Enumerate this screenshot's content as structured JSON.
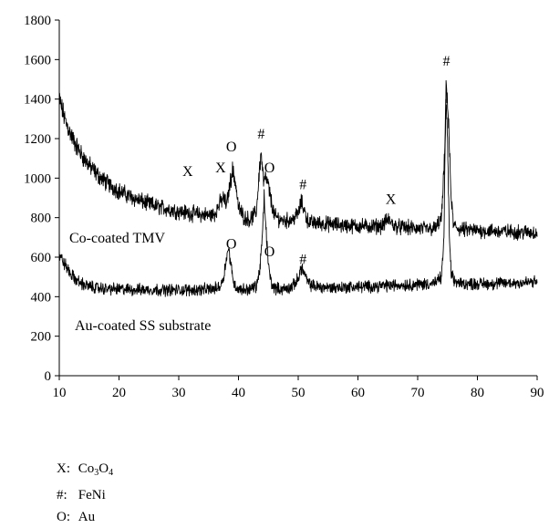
{
  "chart_data": {
    "type": "line",
    "xlim": [
      10,
      90
    ],
    "ylim": [
      0,
      1800
    ],
    "x_ticks": [
      10,
      20,
      30,
      40,
      50,
      60,
      70,
      80,
      90
    ],
    "y_ticks": [
      0,
      200,
      400,
      600,
      800,
      1000,
      1200,
      1400,
      1600,
      1800
    ],
    "grid": false,
    "series": [
      {
        "name": "Co-coated TMV",
        "color": "#000000",
        "x": [
          10,
          11,
          12,
          13,
          14,
          15,
          16,
          17,
          18,
          19,
          20,
          22,
          24,
          26,
          28,
          30,
          32,
          34,
          35,
          36,
          37,
          37.5,
          38,
          38.5,
          39,
          39.5,
          40,
          41,
          42,
          43,
          43.5,
          43.8,
          44.2,
          44.6,
          45,
          45.5,
          46,
          47,
          48,
          49,
          50,
          50.5,
          51,
          51.5,
          52,
          54,
          56,
          58,
          60,
          62,
          64,
          65,
          65.5,
          66,
          67,
          68,
          70,
          72,
          73,
          74,
          74.5,
          74.8,
          75.2,
          75.6,
          76,
          77,
          78,
          80,
          82,
          84,
          86,
          88,
          90
        ],
        "values": [
          1400,
          1290,
          1215,
          1155,
          1105,
          1065,
          1030,
          1000,
          975,
          955,
          935,
          905,
          880,
          860,
          845,
          832,
          822,
          815,
          812,
          818,
          880,
          900,
          860,
          960,
          1040,
          980,
          850,
          800,
          790,
          830,
          1040,
          1130,
          980,
          1000,
          960,
          880,
          810,
          790,
          785,
          790,
          820,
          880,
          840,
          790,
          775,
          770,
          765,
          760,
          758,
          756,
          758,
          790,
          780,
          760,
          752,
          750,
          745,
          742,
          745,
          800,
          1100,
          1500,
          1250,
          900,
          760,
          742,
          738,
          735,
          733,
          730,
          728,
          726,
          725
        ]
      },
      {
        "name": "Au-coated SS substrate",
        "color": "#000000",
        "x": [
          10,
          11,
          12,
          13,
          14,
          15,
          16,
          17,
          18,
          20,
          22,
          24,
          26,
          28,
          30,
          32,
          34,
          36,
          37,
          37.5,
          38,
          38.3,
          38.6,
          39,
          39.5,
          40,
          41,
          42,
          43,
          43.5,
          44,
          44.3,
          44.6,
          45,
          45.5,
          46,
          47,
          48,
          49,
          50,
          50.5,
          51,
          51.5,
          52,
          53,
          54,
          56,
          58,
          60,
          62,
          64,
          66,
          68,
          70,
          72,
          73,
          74,
          74.4,
          74.7,
          75,
          75.3,
          75.6,
          76,
          77,
          78,
          80,
          82,
          84,
          86,
          88,
          90
        ],
        "values": [
          610,
          560,
          510,
          480,
          462,
          452,
          446,
          442,
          440,
          438,
          436,
          435,
          435,
          434,
          434,
          434,
          436,
          440,
          455,
          500,
          600,
          640,
          600,
          500,
          450,
          440,
          436,
          438,
          455,
          520,
          700,
          900,
          750,
          560,
          470,
          445,
          438,
          440,
          450,
          490,
          550,
          520,
          480,
          460,
          452,
          448,
          446,
          448,
          450,
          452,
          455,
          458,
          460,
          462,
          466,
          470,
          500,
          700,
          1400,
          1200,
          700,
          520,
          480,
          470,
          466,
          465,
          466,
          468,
          470,
          472,
          475
        ]
      }
    ],
    "series_labels": [
      "Co-coated TMV",
      "Au-coated SS substrate"
    ],
    "annotations": [
      {
        "text": "X",
        "x": 31.5,
        "y": 1010
      },
      {
        "text": "X",
        "x": 37,
        "y": 1030
      },
      {
        "text": "O",
        "x": 38.8,
        "y": 1135
      },
      {
        "text": "#",
        "x": 43.8,
        "y": 1200
      },
      {
        "text": "O",
        "x": 45.2,
        "y": 1030
      },
      {
        "text": "#",
        "x": 50.8,
        "y": 945
      },
      {
        "text": "X",
        "x": 65.5,
        "y": 870
      },
      {
        "text": "#",
        "x": 74.8,
        "y": 1570
      },
      {
        "text": "O",
        "x": 38.8,
        "y": 645
      },
      {
        "text": "O",
        "x": 45.2,
        "y": 605
      },
      {
        "text": "#",
        "x": 50.8,
        "y": 565
      }
    ]
  },
  "key": [
    {
      "symbol": "X:",
      "label_main": "Co",
      "sub1": "3",
      "label_mid": "O",
      "sub2": "4"
    },
    {
      "symbol": "#:",
      "label_main": "FeNi",
      "sub1": "",
      "label_mid": "",
      "sub2": ""
    },
    {
      "symbol": "O:",
      "label_main": "Au",
      "sub1": "",
      "label_mid": "",
      "sub2": ""
    }
  ]
}
